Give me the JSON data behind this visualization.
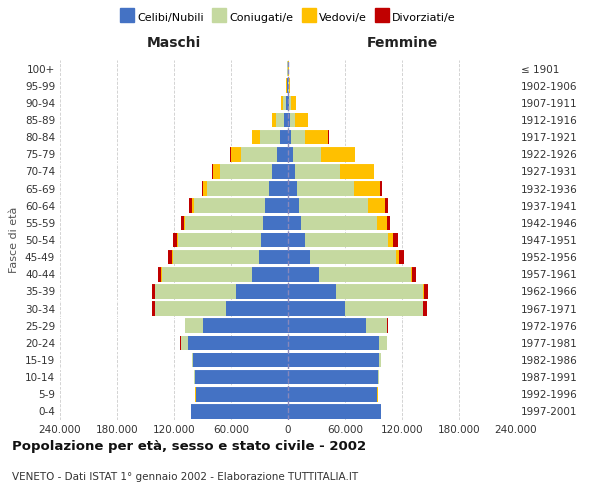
{
  "age_groups": [
    "0-4",
    "5-9",
    "10-14",
    "15-19",
    "20-24",
    "25-29",
    "30-34",
    "35-39",
    "40-44",
    "45-49",
    "50-54",
    "55-59",
    "60-64",
    "65-69",
    "70-74",
    "75-79",
    "80-84",
    "85-89",
    "90-94",
    "95-99",
    "100+"
  ],
  "birth_years": [
    "1997-2001",
    "1992-1996",
    "1987-1991",
    "1982-1986",
    "1977-1981",
    "1972-1976",
    "1967-1971",
    "1962-1966",
    "1957-1961",
    "1952-1956",
    "1947-1951",
    "1942-1946",
    "1937-1941",
    "1932-1936",
    "1927-1931",
    "1922-1926",
    "1917-1921",
    "1912-1916",
    "1907-1911",
    "1902-1906",
    "≤ 1901"
  ],
  "male": {
    "celibi": [
      102000,
      97000,
      98000,
      100000,
      105000,
      90000,
      65000,
      55000,
      38000,
      31000,
      28000,
      26000,
      24000,
      20000,
      17000,
      12000,
      8000,
      4000,
      2000,
      800,
      500
    ],
    "coniugati": [
      200,
      300,
      500,
      1000,
      8000,
      18000,
      75000,
      85000,
      95000,
      90000,
      88000,
      82000,
      75000,
      65000,
      55000,
      38000,
      22000,
      9000,
      3500,
      600,
      200
    ],
    "vedovi": [
      100,
      100,
      100,
      100,
      100,
      100,
      200,
      300,
      400,
      600,
      1000,
      1500,
      2500,
      4000,
      7000,
      10000,
      8000,
      4000,
      1500,
      300,
      100
    ],
    "divorziati": [
      50,
      50,
      50,
      100,
      200,
      500,
      2500,
      3000,
      3000,
      4500,
      4000,
      3500,
      3000,
      1800,
      1200,
      800,
      400,
      300,
      200,
      100,
      50
    ]
  },
  "female": {
    "nubili": [
      98000,
      94000,
      95000,
      96000,
      96000,
      82000,
      60000,
      50000,
      33000,
      23000,
      18000,
      14000,
      12000,
      9000,
      7000,
      5000,
      3500,
      2000,
      1200,
      500,
      300
    ],
    "coniugate": [
      100,
      200,
      500,
      1500,
      8000,
      22000,
      82000,
      92000,
      96000,
      91000,
      87000,
      80000,
      72000,
      60000,
      48000,
      30000,
      14000,
      5000,
      2000,
      400,
      100
    ],
    "vedove": [
      100,
      100,
      100,
      100,
      100,
      200,
      500,
      800,
      1500,
      3000,
      6000,
      10000,
      18000,
      28000,
      35000,
      35000,
      25000,
      14000,
      5000,
      800,
      200
    ],
    "divorziate": [
      50,
      50,
      50,
      100,
      200,
      600,
      3500,
      4500,
      4000,
      5000,
      4500,
      3500,
      2800,
      1500,
      900,
      600,
      350,
      250,
      150,
      80,
      30
    ]
  },
  "colors": {
    "celibi_nubili": "#4472c4",
    "coniugati": "#c5d9a0",
    "vedovi": "#ffc000",
    "divorziati": "#c00000"
  },
  "title": "Popolazione per età, sesso e stato civile - 2002",
  "subtitle": "VENETO - Dati ISTAT 1° gennaio 2002 - Elaborazione TUTTITALIA.IT",
  "xlabel_left": "Maschi",
  "xlabel_right": "Femmine",
  "ylabel_left": "Fasce di età",
  "xlim": 240000,
  "xticks": [
    -240000,
    -180000,
    -120000,
    -60000,
    0,
    60000,
    120000,
    180000,
    240000
  ],
  "xtick_labels": [
    "240.000",
    "180.000",
    "120.000",
    "60.000",
    "0",
    "60.000",
    "120.000",
    "180.000",
    "240.000"
  ],
  "background_color": "#ffffff",
  "grid_color": "#cccccc",
  "legend_labels": [
    "Celibi/Nubili",
    "Coniugati/e",
    "Vedovi/e",
    "Divorziati/e"
  ]
}
